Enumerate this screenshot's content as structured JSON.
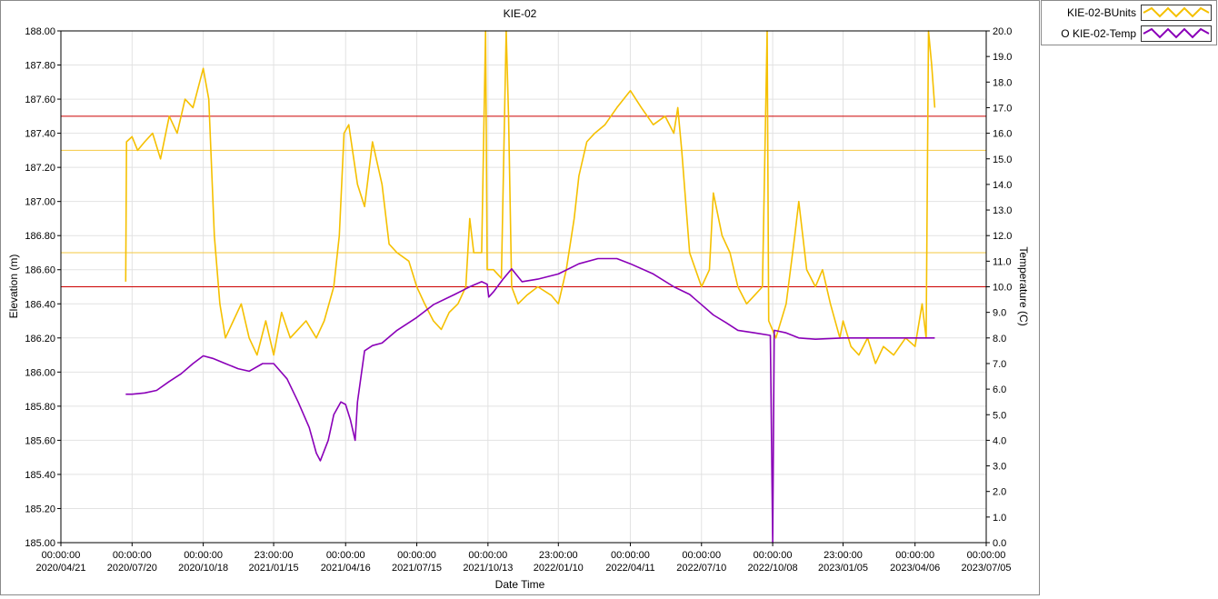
{
  "chart_data": {
    "type": "line",
    "title": "KIE-02",
    "xlabel": "Date Time",
    "ylabel_left": "Elevation (m)",
    "ylabel_right": "Temperature (C)",
    "x_range": [
      "2020-04-21",
      "2023-07-05"
    ],
    "x_ticks": [
      {
        "date": "2020-04-21",
        "time": "00:00:00",
        "label": "2020/04/21"
      },
      {
        "date": "2020-07-20",
        "time": "00:00:00",
        "label": "2020/07/20"
      },
      {
        "date": "2020-10-18",
        "time": "00:00:00",
        "label": "2020/10/18"
      },
      {
        "date": "2021-01-15",
        "time": "23:00:00",
        "label": "2021/01/15"
      },
      {
        "date": "2021-04-16",
        "time": "00:00:00",
        "label": "2021/04/16"
      },
      {
        "date": "2021-07-15",
        "time": "00:00:00",
        "label": "2021/07/15"
      },
      {
        "date": "2021-10-13",
        "time": "00:00:00",
        "label": "2021/10/13"
      },
      {
        "date": "2022-01-10",
        "time": "23:00:00",
        "label": "2022/01/10"
      },
      {
        "date": "2022-04-11",
        "time": "00:00:00",
        "label": "2022/04/11"
      },
      {
        "date": "2022-07-10",
        "time": "00:00:00",
        "label": "2022/07/10"
      },
      {
        "date": "2022-10-08",
        "time": "00:00:00",
        "label": "2022/10/08"
      },
      {
        "date": "2023-01-05",
        "time": "23:00:00",
        "label": "2023/01/05"
      },
      {
        "date": "2023-04-06",
        "time": "00:00:00",
        "label": "2023/04/06"
      },
      {
        "date": "2023-07-05",
        "time": "00:00:00",
        "label": "2023/07/05"
      }
    ],
    "y_left": {
      "min": 185.0,
      "max": 188.0,
      "ticks": [
        "185.00",
        "185.20",
        "185.40",
        "185.60",
        "185.80",
        "186.00",
        "186.20",
        "186.40",
        "186.60",
        "186.80",
        "187.00",
        "187.20",
        "187.40",
        "187.60",
        "187.80",
        "188.00"
      ]
    },
    "y_right": {
      "min": 0.0,
      "max": 20.0,
      "ticks": [
        "0.0",
        "1.0",
        "2.0",
        "3.0",
        "4.0",
        "5.0",
        "6.0",
        "7.0",
        "8.0",
        "9.0",
        "10.0",
        "11.0",
        "12.0",
        "13.0",
        "14.0",
        "15.0",
        "16.0",
        "17.0",
        "18.0",
        "19.0",
        "20.0"
      ]
    },
    "grid": true,
    "legend_position": "right-top",
    "reference_lines": [
      {
        "y": 187.5,
        "color": "#cc0000"
      },
      {
        "y": 187.3,
        "color": "#f5c842"
      },
      {
        "y": 186.7,
        "color": "#f5c842"
      },
      {
        "y": 186.5,
        "color": "#cc0000"
      }
    ],
    "series": [
      {
        "name": "KIE-02-BUnits",
        "axis": "left",
        "color": "#f5c000",
        "points": [
          [
            "2020-07-12",
            186.53
          ],
          [
            "2020-07-13",
            187.35
          ],
          [
            "2020-07-20",
            187.38
          ],
          [
            "2020-07-27",
            187.3
          ],
          [
            "2020-08-05",
            187.35
          ],
          [
            "2020-08-15",
            187.4
          ],
          [
            "2020-08-25",
            187.25
          ],
          [
            "2020-09-05",
            187.5
          ],
          [
            "2020-09-15",
            187.4
          ],
          [
            "2020-09-25",
            187.6
          ],
          [
            "2020-10-05",
            187.55
          ],
          [
            "2020-10-18",
            187.78
          ],
          [
            "2020-10-25",
            187.6
          ],
          [
            "2020-11-01",
            186.8
          ],
          [
            "2020-11-08",
            186.4
          ],
          [
            "2020-11-15",
            186.2
          ],
          [
            "2020-11-25",
            186.3
          ],
          [
            "2020-12-05",
            186.4
          ],
          [
            "2020-12-15",
            186.2
          ],
          [
            "2020-12-25",
            186.1
          ],
          [
            "2021-01-05",
            186.3
          ],
          [
            "2021-01-15",
            186.1
          ],
          [
            "2021-01-25",
            186.35
          ],
          [
            "2021-02-05",
            186.2
          ],
          [
            "2021-02-15",
            186.25
          ],
          [
            "2021-02-25",
            186.3
          ],
          [
            "2021-03-10",
            186.2
          ],
          [
            "2021-03-20",
            186.3
          ],
          [
            "2021-04-01",
            186.5
          ],
          [
            "2021-04-08",
            186.8
          ],
          [
            "2021-04-14",
            187.4
          ],
          [
            "2021-04-20",
            187.45
          ],
          [
            "2021-05-01",
            187.1
          ],
          [
            "2021-05-10",
            186.97
          ],
          [
            "2021-05-20",
            187.35
          ],
          [
            "2021-06-01",
            187.1
          ],
          [
            "2021-06-10",
            186.75
          ],
          [
            "2021-06-20",
            186.7
          ],
          [
            "2021-07-05",
            186.65
          ],
          [
            "2021-07-15",
            186.5
          ],
          [
            "2021-07-25",
            186.4
          ],
          [
            "2021-08-05",
            186.3
          ],
          [
            "2021-08-15",
            186.25
          ],
          [
            "2021-08-25",
            186.35
          ],
          [
            "2021-09-05",
            186.4
          ],
          [
            "2021-09-15",
            186.5
          ],
          [
            "2021-09-20",
            186.9
          ],
          [
            "2021-09-25",
            186.7
          ],
          [
            "2021-10-05",
            186.7
          ],
          [
            "2021-10-10",
            188.0
          ],
          [
            "2021-10-12",
            186.6
          ],
          [
            "2021-10-20",
            186.6
          ],
          [
            "2021-10-30",
            186.55
          ],
          [
            "2021-11-05",
            188.0
          ],
          [
            "2021-11-08",
            187.5
          ],
          [
            "2021-11-12",
            186.5
          ],
          [
            "2021-11-20",
            186.4
          ],
          [
            "2021-12-01",
            186.45
          ],
          [
            "2021-12-15",
            186.5
          ],
          [
            "2022-01-01",
            186.45
          ],
          [
            "2022-01-10",
            186.4
          ],
          [
            "2022-01-20",
            186.6
          ],
          [
            "2022-01-30",
            186.9
          ],
          [
            "2022-02-05",
            187.15
          ],
          [
            "2022-02-15",
            187.35
          ],
          [
            "2022-02-25",
            187.4
          ],
          [
            "2022-03-10",
            187.45
          ],
          [
            "2022-03-25",
            187.55
          ],
          [
            "2022-04-11",
            187.65
          ],
          [
            "2022-04-25",
            187.55
          ],
          [
            "2022-05-10",
            187.45
          ],
          [
            "2022-05-25",
            187.5
          ],
          [
            "2022-06-05",
            187.4
          ],
          [
            "2022-06-10",
            187.55
          ],
          [
            "2022-06-15",
            187.3
          ],
          [
            "2022-06-25",
            186.7
          ],
          [
            "2022-07-10",
            186.5
          ],
          [
            "2022-07-20",
            186.6
          ],
          [
            "2022-07-25",
            187.05
          ],
          [
            "2022-08-05",
            186.8
          ],
          [
            "2022-08-15",
            186.7
          ],
          [
            "2022-08-25",
            186.5
          ],
          [
            "2022-09-05",
            186.4
          ],
          [
            "2022-09-15",
            186.45
          ],
          [
            "2022-09-25",
            186.5
          ],
          [
            "2022-10-01",
            188.0
          ],
          [
            "2022-10-03",
            186.3
          ],
          [
            "2022-10-12",
            186.2
          ],
          [
            "2022-10-25",
            186.4
          ],
          [
            "2022-11-05",
            186.8
          ],
          [
            "2022-11-10",
            187.0
          ],
          [
            "2022-11-20",
            186.6
          ],
          [
            "2022-12-01",
            186.5
          ],
          [
            "2022-12-10",
            186.6
          ],
          [
            "2022-12-20",
            186.4
          ],
          [
            "2023-01-01",
            186.2
          ],
          [
            "2023-01-05",
            186.3
          ],
          [
            "2023-01-15",
            186.15
          ],
          [
            "2023-01-25",
            186.1
          ],
          [
            "2023-02-05",
            186.2
          ],
          [
            "2023-02-15",
            186.05
          ],
          [
            "2023-02-25",
            186.15
          ],
          [
            "2023-03-10",
            186.1
          ],
          [
            "2023-03-25",
            186.2
          ],
          [
            "2023-04-06",
            186.15
          ],
          [
            "2023-04-15",
            186.4
          ],
          [
            "2023-04-20",
            186.2
          ],
          [
            "2023-04-23",
            188.0
          ],
          [
            "2023-04-27",
            187.8
          ],
          [
            "2023-05-01",
            187.55
          ]
        ]
      },
      {
        "name": "O KIE-02-Temp",
        "axis": "right",
        "color": "#8a00b8",
        "points": [
          [
            "2020-07-12",
            5.8
          ],
          [
            "2020-07-20",
            5.8
          ],
          [
            "2020-08-05",
            5.85
          ],
          [
            "2020-08-20",
            5.95
          ],
          [
            "2020-09-05",
            6.3
          ],
          [
            "2020-09-20",
            6.6
          ],
          [
            "2020-10-05",
            7.0
          ],
          [
            "2020-10-18",
            7.3
          ],
          [
            "2020-10-30",
            7.2
          ],
          [
            "2020-11-15",
            7.0
          ],
          [
            "2020-12-01",
            6.8
          ],
          [
            "2020-12-15",
            6.7
          ],
          [
            "2021-01-01",
            7.0
          ],
          [
            "2021-01-15",
            7.0
          ],
          [
            "2021-02-01",
            6.4
          ],
          [
            "2021-02-15",
            5.5
          ],
          [
            "2021-03-01",
            4.5
          ],
          [
            "2021-03-10",
            3.5
          ],
          [
            "2021-03-15",
            3.2
          ],
          [
            "2021-03-25",
            4.0
          ],
          [
            "2021-04-01",
            5.0
          ],
          [
            "2021-04-10",
            5.5
          ],
          [
            "2021-04-16",
            5.4
          ],
          [
            "2021-04-22",
            4.8
          ],
          [
            "2021-04-28",
            4.0
          ],
          [
            "2021-05-01",
            5.5
          ],
          [
            "2021-05-10",
            7.5
          ],
          [
            "2021-05-20",
            7.7
          ],
          [
            "2021-06-01",
            7.8
          ],
          [
            "2021-06-20",
            8.3
          ],
          [
            "2021-07-15",
            8.8
          ],
          [
            "2021-08-05",
            9.3
          ],
          [
            "2021-09-01",
            9.7
          ],
          [
            "2021-09-20",
            10.0
          ],
          [
            "2021-10-05",
            10.2
          ],
          [
            "2021-10-12",
            10.1
          ],
          [
            "2021-10-14",
            9.6
          ],
          [
            "2021-10-20",
            9.8
          ],
          [
            "2021-11-01",
            10.3
          ],
          [
            "2021-11-12",
            10.7
          ],
          [
            "2021-11-25",
            10.2
          ],
          [
            "2021-12-15",
            10.3
          ],
          [
            "2022-01-10",
            10.5
          ],
          [
            "2022-02-05",
            10.9
          ],
          [
            "2022-03-01",
            11.1
          ],
          [
            "2022-03-25",
            11.1
          ],
          [
            "2022-04-11",
            10.9
          ],
          [
            "2022-05-10",
            10.5
          ],
          [
            "2022-06-05",
            10.0
          ],
          [
            "2022-06-25",
            9.7
          ],
          [
            "2022-07-10",
            9.3
          ],
          [
            "2022-07-25",
            8.9
          ],
          [
            "2022-08-10",
            8.6
          ],
          [
            "2022-08-25",
            8.3
          ],
          [
            "2022-09-15",
            8.2
          ],
          [
            "2022-10-05",
            8.1
          ],
          [
            "2022-10-08",
            0.0
          ],
          [
            "2022-10-10",
            8.3
          ],
          [
            "2022-10-25",
            8.2
          ],
          [
            "2022-11-10",
            8.0
          ],
          [
            "2022-12-01",
            7.95
          ],
          [
            "2023-01-05",
            8.0
          ],
          [
            "2023-02-15",
            8.0
          ],
          [
            "2023-04-06",
            8.0
          ],
          [
            "2023-05-01",
            8.0
          ]
        ]
      }
    ]
  }
}
